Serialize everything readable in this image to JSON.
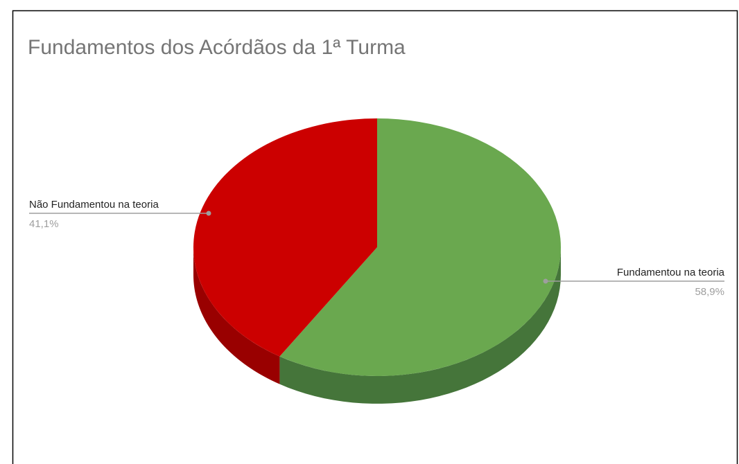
{
  "chart_data": {
    "type": "pie",
    "title": "Fundamentos dos Acórdãos da 1ª Turma",
    "categories": [
      "Fundamentou na teoria",
      "Não Fundamentou na teoria"
    ],
    "values": [
      58.9,
      41.1
    ],
    "value_labels": [
      "58,9%",
      "41,1%"
    ],
    "colors": [
      "#6aa84f",
      "#cc0000"
    ],
    "side_colors": [
      "#45753a",
      "#990000"
    ]
  }
}
